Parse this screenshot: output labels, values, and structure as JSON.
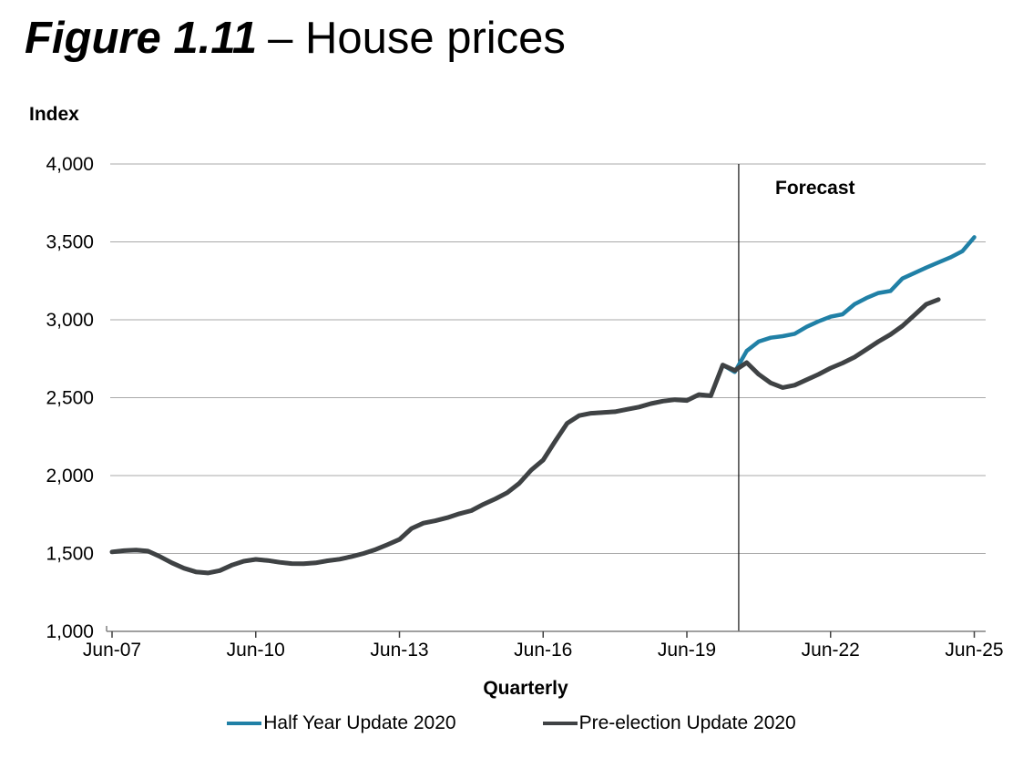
{
  "header": {
    "figure_label": "Figure 1.11",
    "title_rest": "– House prices"
  },
  "chart_data": {
    "type": "line",
    "title": "Figure 1.11 – House prices",
    "ylabel": "Index",
    "xlabel": "Quarterly",
    "forecast_label": "Forecast",
    "frequency": "Quarterly",
    "grid": true,
    "legend_position": "bottom",
    "ylim": [
      1000,
      4000
    ],
    "ytick_values": [
      1000,
      1500,
      2000,
      2500,
      3000,
      3500,
      4000
    ],
    "ytick_labels": [
      "1,000",
      "1,500",
      "2,000",
      "2,500",
      "3,000",
      "3,500",
      "4,000"
    ],
    "xtick_quarters": [
      0,
      12,
      24,
      36,
      48,
      60,
      72
    ],
    "xtick_labels": [
      "Jun-07",
      "Jun-10",
      "Jun-13",
      "Jun-16",
      "Jun-19",
      "Jun-22",
      "Jun-25"
    ],
    "x_start_label": "Jun-07",
    "x_end_label": "Jun-25",
    "forecast_divider_quarter": 52.33,
    "colors": {
      "grid": "#A9A9A9",
      "axis": "#808080",
      "divider": "#1A1A1A"
    },
    "series": [
      {
        "name": "Half Year Update 2020",
        "color": "#2080A6",
        "first_point": "Jun-07",
        "last_point": "Jun-25",
        "values": [
          1510,
          1518,
          1522,
          1515,
          1480,
          1440,
          1405,
          1382,
          1375,
          1390,
          1425,
          1450,
          1462,
          1455,
          1443,
          1435,
          1434,
          1440,
          1453,
          1463,
          1480,
          1500,
          1525,
          1557,
          1590,
          1660,
          1695,
          1710,
          1730,
          1755,
          1775,
          1815,
          1850,
          1890,
          1950,
          2035,
          2100,
          2220,
          2335,
          2385,
          2400,
          2405,
          2410,
          2425,
          2440,
          2462,
          2478,
          2487,
          2482,
          2520,
          2512,
          2710,
          2665,
          2800,
          2860,
          2885,
          2895,
          2910,
          2955,
          2990,
          3020,
          3035,
          3100,
          3140,
          3172,
          3185,
          3265,
          3300,
          3335,
          3368,
          3400,
          3440,
          3530
        ]
      },
      {
        "name": "Pre-election Update 2020",
        "color": "#3F4244",
        "first_point": "Jun-07",
        "last_point": "Sep-24",
        "values": [
          1510,
          1518,
          1522,
          1515,
          1480,
          1440,
          1405,
          1382,
          1375,
          1390,
          1425,
          1450,
          1462,
          1455,
          1443,
          1435,
          1434,
          1440,
          1453,
          1463,
          1480,
          1500,
          1525,
          1557,
          1590,
          1660,
          1695,
          1710,
          1730,
          1755,
          1775,
          1815,
          1850,
          1890,
          1950,
          2035,
          2100,
          2220,
          2335,
          2385,
          2400,
          2405,
          2410,
          2425,
          2440,
          2462,
          2478,
          2487,
          2482,
          2520,
          2512,
          2710,
          2675,
          2725,
          2650,
          2595,
          2565,
          2580,
          2615,
          2650,
          2690,
          2722,
          2760,
          2810,
          2860,
          2905,
          2960,
          3030,
          3100,
          3130
        ]
      }
    ]
  }
}
